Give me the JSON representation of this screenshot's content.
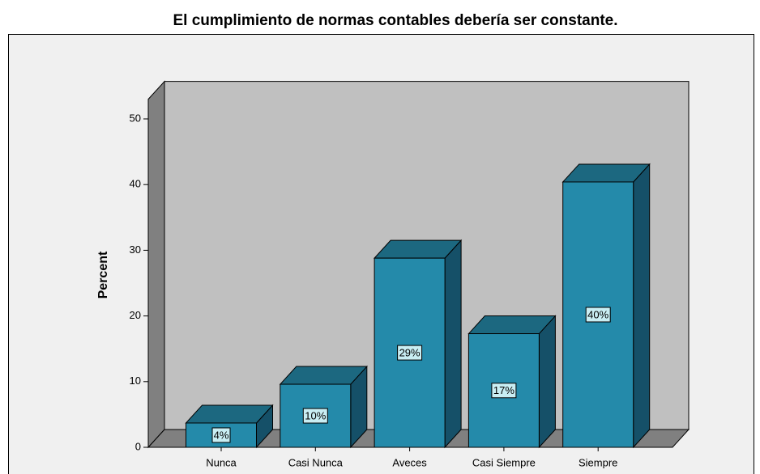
{
  "chart_data": {
    "type": "bar3d",
    "title": "El cumplimiento de normas contables debería ser constante.",
    "y_label": "Percent",
    "categories": [
      "Nunca",
      "Casi Nunca",
      "Aveces",
      "Casi Siempre",
      "Siempre"
    ],
    "values": [
      3.7,
      9.6,
      28.8,
      17.3,
      40.4
    ],
    "value_labels": [
      "4%",
      "10%",
      "29%",
      "17%",
      "40%"
    ],
    "color": "#248aaa",
    "ylim": [
      0,
      53
    ],
    "yticks": [
      0,
      10,
      20,
      30,
      40,
      50
    ]
  }
}
